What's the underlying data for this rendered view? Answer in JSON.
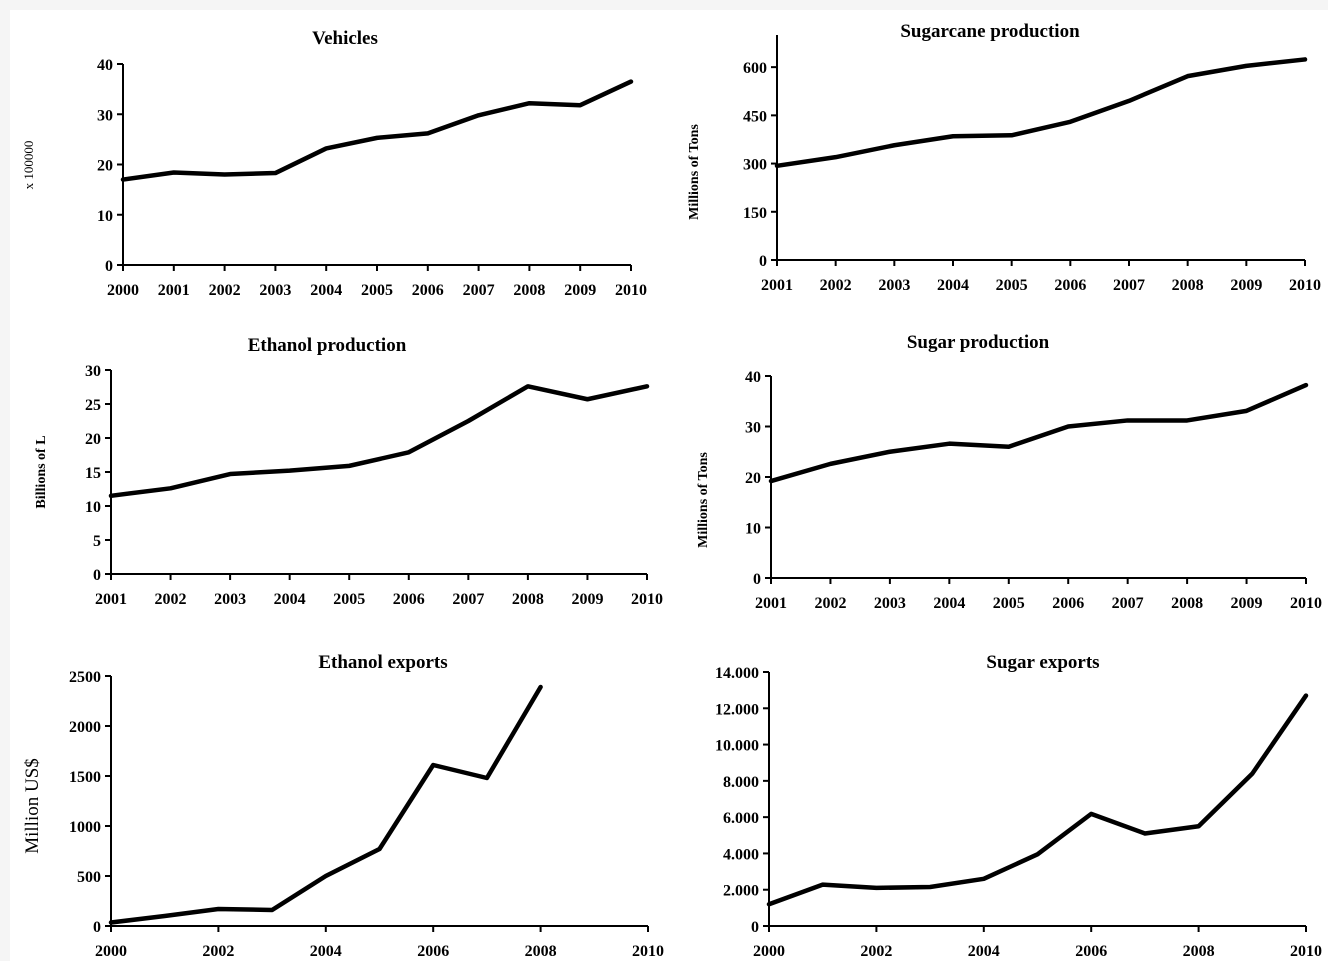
{
  "chart_data": [
    {
      "type": "line",
      "title": "Vehicles",
      "ylabel": "x 100000",
      "x": [
        2000,
        2001,
        2002,
        2003,
        2004,
        2005,
        2006,
        2007,
        2008,
        2009,
        2010
      ],
      "xticks": [
        "2000",
        "2001",
        "2002",
        "2003",
        "2004",
        "2005",
        "2006",
        "2007",
        "2008",
        "2009",
        "2010"
      ],
      "series": [
        {
          "values": [
            17.0,
            18.4,
            18.0,
            18.3,
            23.2,
            25.3,
            26.2,
            29.8,
            32.2,
            31.8,
            36.5
          ]
        }
      ],
      "ylim": [
        0,
        40
      ],
      "yticks": [
        "0",
        "10",
        "20",
        "30",
        "40"
      ],
      "xlim": [
        2000,
        2010
      ],
      "grid": false
    },
    {
      "type": "line",
      "title": "Sugarcane production",
      "ylabel": "Millions of Tons",
      "x": [
        2001,
        2002,
        2003,
        2004,
        2005,
        2006,
        2007,
        2008,
        2009,
        2010
      ],
      "xticks": [
        "2001",
        "2002",
        "2003",
        "2004",
        "2005",
        "2006",
        "2007",
        "2008",
        "2009",
        "2010"
      ],
      "series": [
        {
          "values": [
            293,
            320,
            357,
            385,
            388,
            430,
            495,
            572,
            604,
            624
          ]
        }
      ],
      "ylim": [
        0,
        700
      ],
      "yticks": [
        "0",
        "150",
        "300",
        "450",
        "600"
      ],
      "xlim": [
        2001,
        2010
      ],
      "grid": false
    },
    {
      "type": "line",
      "title": "Ethanol production",
      "ylabel": "Billions of L",
      "x": [
        2001,
        2002,
        2003,
        2004,
        2005,
        2006,
        2007,
        2008,
        2009,
        2010
      ],
      "xticks": [
        "2001",
        "2002",
        "2003",
        "2004",
        "2005",
        "2006",
        "2007",
        "2008",
        "2009",
        "2010"
      ],
      "series": [
        {
          "values": [
            11.5,
            12.6,
            14.7,
            15.2,
            15.9,
            17.9,
            22.5,
            27.6,
            25.7,
            27.6
          ]
        }
      ],
      "ylim": [
        0,
        30
      ],
      "yticks": [
        "0",
        "5",
        "10",
        "15",
        "20",
        "25",
        "30"
      ],
      "xlim": [
        2001,
        2010
      ],
      "grid": false
    },
    {
      "type": "line",
      "title": "Sugar production",
      "ylabel": "Millions of Tons",
      "x": [
        2001,
        2002,
        2003,
        2004,
        2005,
        2006,
        2007,
        2008,
        2009,
        2010
      ],
      "xticks": [
        "2001",
        "2002",
        "2003",
        "2004",
        "2005",
        "2006",
        "2007",
        "2008",
        "2009",
        "2010"
      ],
      "series": [
        {
          "values": [
            19.2,
            22.6,
            25.0,
            26.6,
            26.0,
            30.0,
            31.2,
            31.2,
            33.1,
            38.2
          ]
        }
      ],
      "ylim": [
        0,
        40
      ],
      "yticks": [
        "0",
        "10",
        "20",
        "30",
        "40"
      ],
      "xlim": [
        2001,
        2010
      ],
      "grid": false
    },
    {
      "type": "line",
      "title": "Ethanol exports",
      "ylabel": "Million  US$",
      "x": [
        2000,
        2001,
        2002,
        2003,
        2004,
        2005,
        2006,
        2007,
        2008
      ],
      "xticks": [
        "2000",
        "2002",
        "2004",
        "2006",
        "2008",
        "2010"
      ],
      "series": [
        {
          "values": [
            35,
            100,
            170,
            160,
            500,
            770,
            1610,
            1480,
            2390
          ]
        }
      ],
      "ylim": [
        0,
        2500
      ],
      "yticks": [
        "0",
        "500",
        "1000",
        "1500",
        "2000",
        "2500"
      ],
      "xlim": [
        2000,
        2010
      ],
      "grid": false
    },
    {
      "type": "line",
      "title": "Sugar exports",
      "ylabel": "",
      "x": [
        2000,
        2001,
        2002,
        2003,
        2004,
        2005,
        2006,
        2007,
        2008,
        2009,
        2010
      ],
      "xticks": [
        "2000",
        "2002",
        "2004",
        "2006",
        "2008",
        "2010"
      ],
      "series": [
        {
          "values": [
            1200,
            2280,
            2100,
            2150,
            2600,
            3950,
            6180,
            5100,
            5500,
            8400,
            12700
          ]
        }
      ],
      "ylim": [
        0,
        14000
      ],
      "yticks": [
        "0",
        "2.000",
        "4.000",
        "6.000",
        "8.000",
        "10.000",
        "12.000",
        "14.000"
      ],
      "xlim": [
        2000,
        2010
      ],
      "grid": false
    }
  ]
}
